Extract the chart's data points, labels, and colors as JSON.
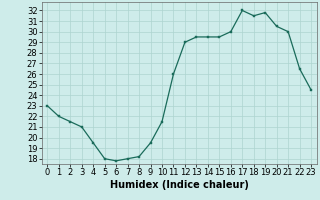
{
  "x": [
    0,
    1,
    2,
    3,
    4,
    5,
    6,
    7,
    8,
    9,
    10,
    11,
    12,
    13,
    14,
    15,
    16,
    17,
    18,
    19,
    20,
    21,
    22,
    23
  ],
  "y": [
    23.0,
    22.0,
    21.5,
    21.0,
    19.5,
    18.0,
    17.8,
    18.0,
    18.2,
    19.5,
    21.5,
    26.0,
    29.0,
    29.5,
    29.5,
    29.5,
    30.0,
    32.0,
    31.5,
    31.8,
    30.5,
    30.0,
    26.5,
    24.5
  ],
  "line_color": "#1a6b5a",
  "marker_color": "#1a6b5a",
  "bg_color": "#ceecea",
  "grid_color": "#aed4d0",
  "xlabel": "Humidex (Indice chaleur)",
  "ylabel_ticks": [
    18,
    19,
    20,
    21,
    22,
    23,
    24,
    25,
    26,
    27,
    28,
    29,
    30,
    31,
    32
  ],
  "ylim": [
    17.5,
    32.8
  ],
  "xlim": [
    -0.5,
    23.5
  ],
  "xtick_labels": [
    "0",
    "1",
    "2",
    "3",
    "4",
    "5",
    "6",
    "7",
    "8",
    "9",
    "10",
    "11",
    "12",
    "13",
    "14",
    "15",
    "16",
    "17",
    "18",
    "19",
    "20",
    "21",
    "22",
    "23"
  ],
  "label_fontsize": 7,
  "tick_fontsize": 6
}
